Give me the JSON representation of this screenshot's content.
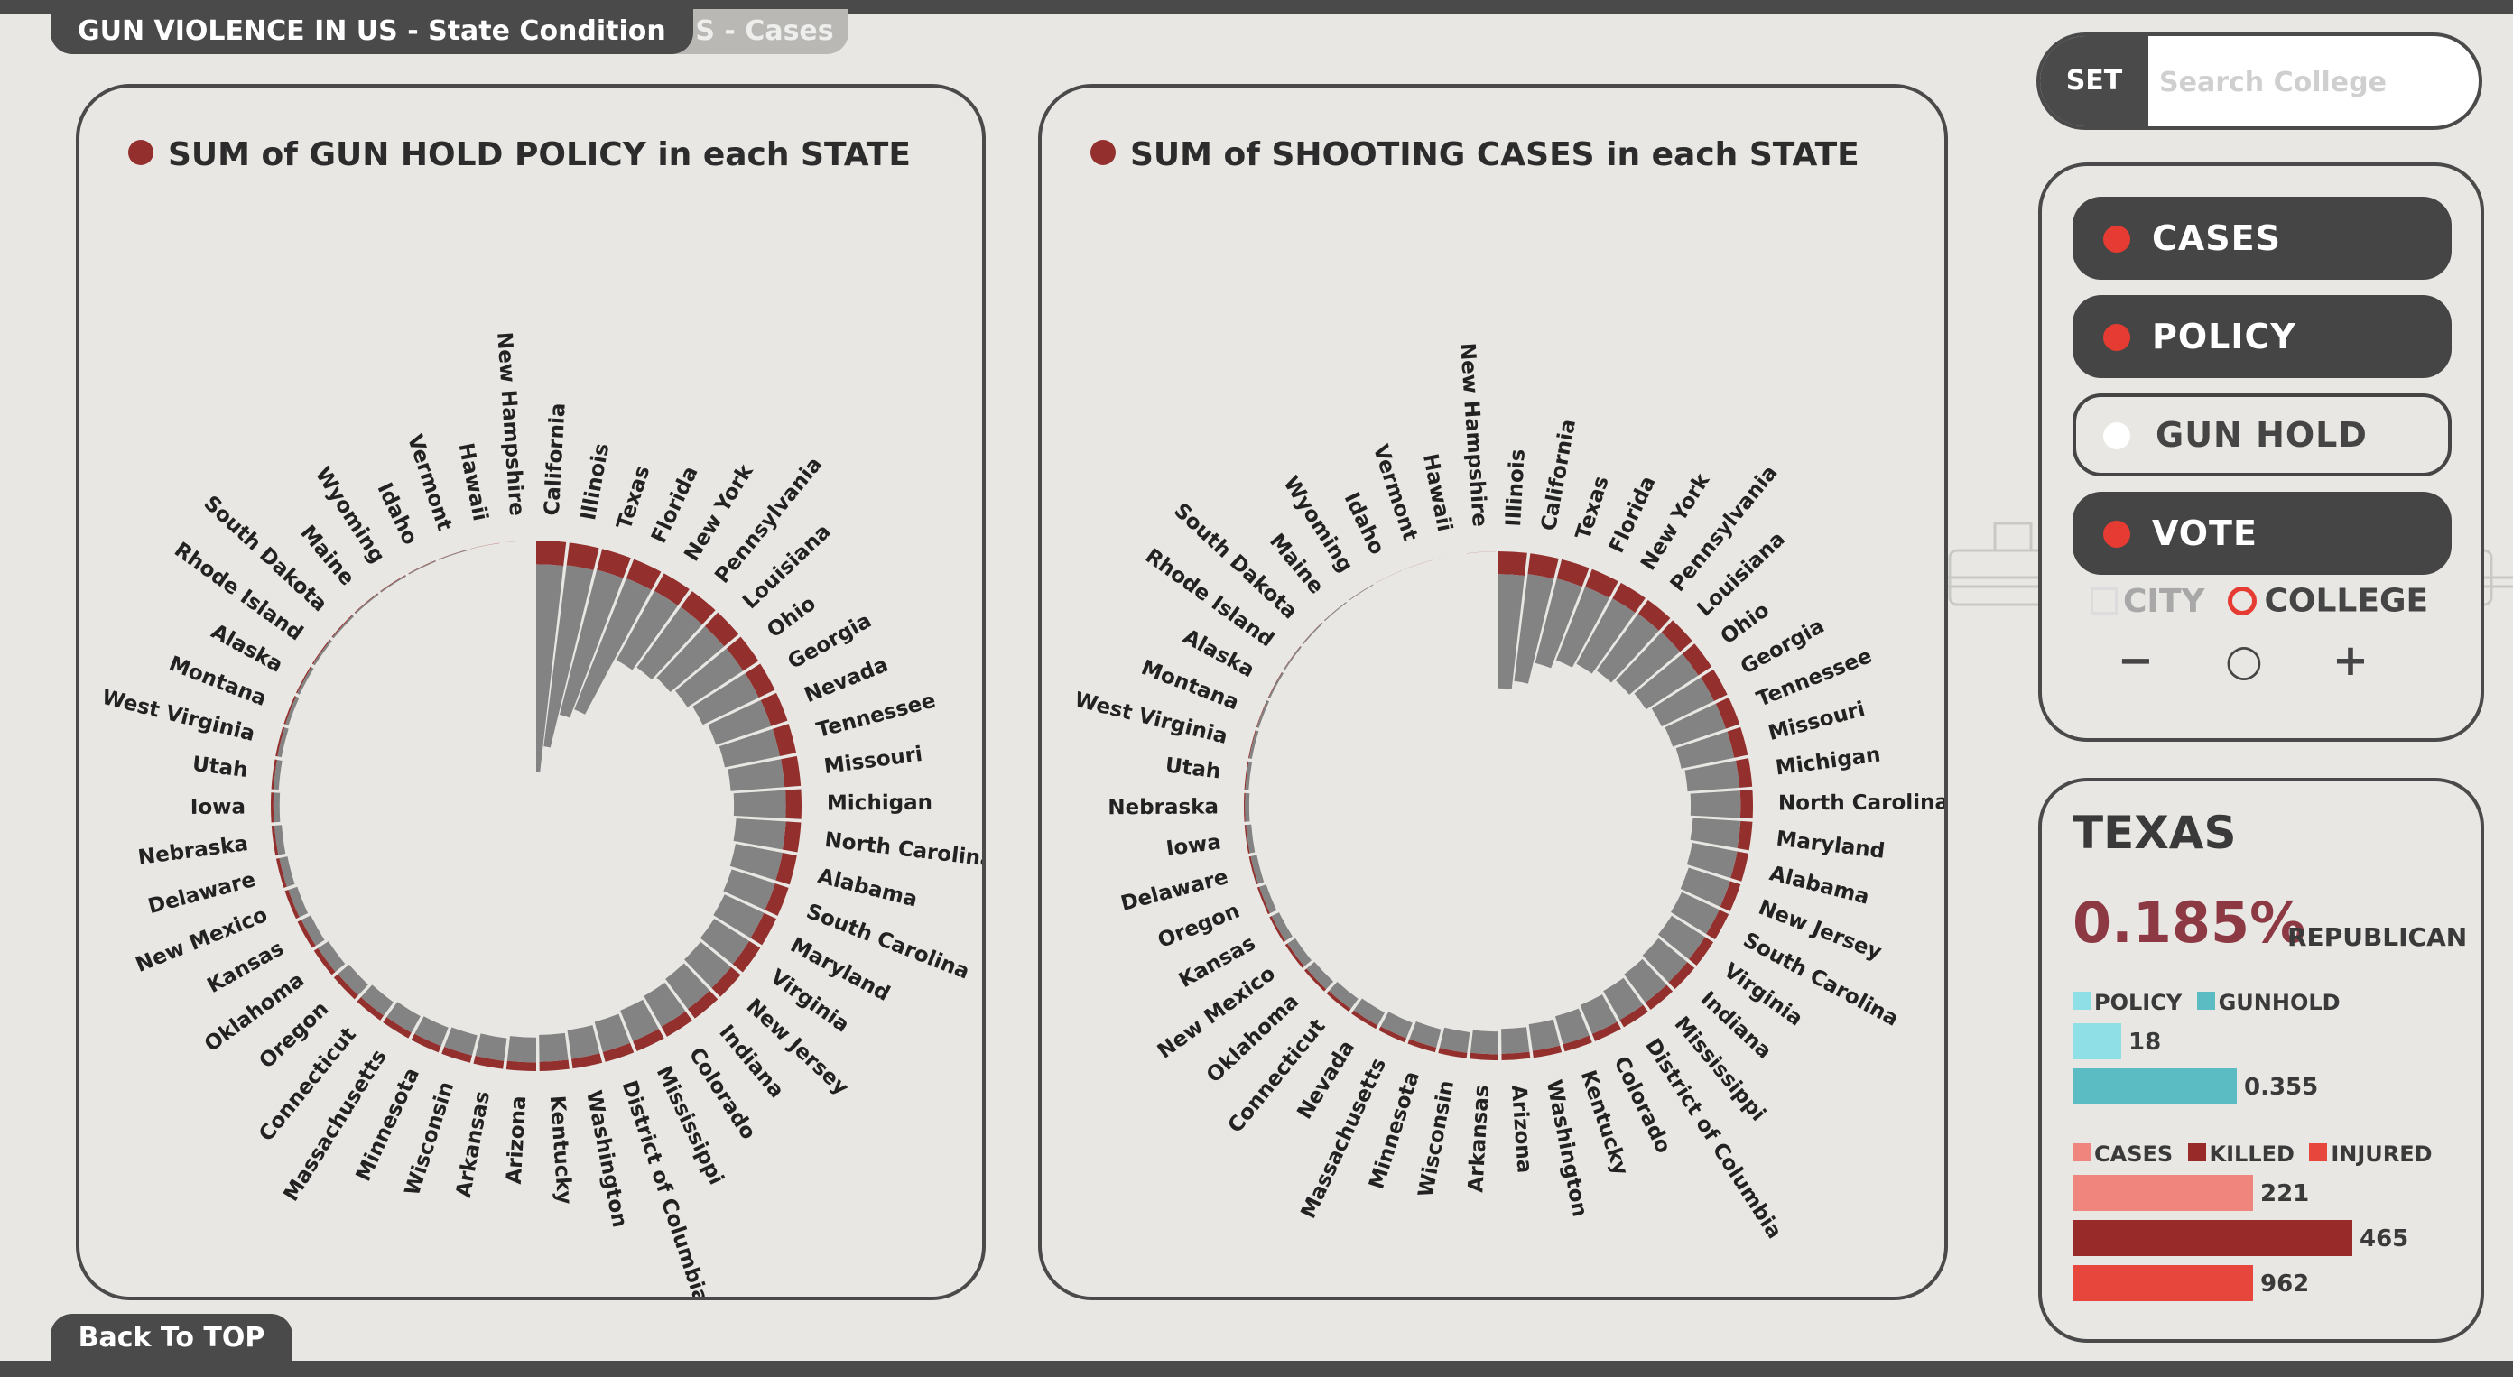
{
  "tabs": {
    "main": "GUN VIOLENCE IN US - State Condition",
    "secondary": "US - Cases"
  },
  "search": {
    "set_label": "SET",
    "placeholder": "Search College"
  },
  "filters": {
    "buttons": [
      {
        "label": "CASES",
        "active": true
      },
      {
        "label": "POLICY",
        "active": true
      },
      {
        "label": "GUN HOLD",
        "active": false
      },
      {
        "label": "VOTE",
        "active": true
      }
    ],
    "city_label": "CITY",
    "college_label": "COLLEGE",
    "zoom_out": "−",
    "zoom_reset": "○",
    "zoom_in": "+"
  },
  "info": {
    "state": "TEXAS",
    "percent": "0.185%",
    "party": "REPUBLICAN",
    "legend1": [
      "POLICY",
      "GUNHOLD"
    ],
    "policy_value": "18",
    "gunhold_value": "0.355",
    "legend2": [
      "CASES",
      "KILLED",
      "INJURED"
    ],
    "cases_value": "221",
    "killed_value": "465",
    "injured_value": "962"
  },
  "back_label": "Back To TOP",
  "colors": {
    "dark": "#4a4a4a",
    "red_bar": "#93302d",
    "gray_bar": "#838383",
    "accent_red": "#e63b32",
    "policy": "#8fe0e6",
    "gunhold": "#5bbcc4",
    "cases": "#ef857c",
    "killed": "#982b29",
    "injured": "#e7463d"
  },
  "chart_data": [
    {
      "type": "radial-bar",
      "title": "SUM of GUN HOLD POLICY in each STATE",
      "series_note": "relative bar lengths (0–1)",
      "categories": [
        "California",
        "Illinois",
        "Texas",
        "Florida",
        "New York",
        "Pennsylvania",
        "Louisiana",
        "Ohio",
        "Georgia",
        "Nevada",
        "Tennessee",
        "Missouri",
        "Michigan",
        "North Carolina",
        "Alabama",
        "South Carolina",
        "Maryland",
        "Virginia",
        "New Jersey",
        "Indiana",
        "Colorado",
        "Mississippi",
        "District of Columbia",
        "Washington",
        "Kentucky",
        "Arizona",
        "Arkansas",
        "Wisconsin",
        "Minnesota",
        "Massachusetts",
        "Connecticut",
        "Oregon",
        "Oklahoma",
        "Kansas",
        "New Mexico",
        "Delaware",
        "Nebraska",
        "Iowa",
        "Utah",
        "West Virginia",
        "Montana",
        "Alaska",
        "Rhode Island",
        "South Dakota",
        "Maine",
        "Wyoming",
        "Idaho",
        "Vermont",
        "Hawaii",
        "New Hampshire"
      ],
      "series": [
        {
          "values": [
            0.22,
            0.21,
            0.2,
            0.19,
            0.185,
            0.18,
            0.175,
            0.17,
            0.165,
            0.16,
            0.155,
            0.15,
            0.145,
            0.14,
            0.135,
            0.13,
            0.125,
            0.12,
            0.115,
            0.11,
            0.105,
            0.1,
            0.095,
            0.09,
            0.085,
            0.08,
            0.075,
            0.07,
            0.065,
            0.06,
            0.055,
            0.05,
            0.045,
            0.04,
            0.035,
            0.03,
            0.027,
            0.024,
            0.021,
            0.018,
            0.015,
            0.012,
            0.01,
            0.008,
            0.006,
            0.005,
            0.004,
            0.003,
            0.002,
            0.001
          ]
        },
        {
          "values": [
            1.0,
            0.88,
            0.72,
            0.68,
            0.38,
            0.36,
            0.34,
            0.32,
            0.3,
            0.28,
            0.27,
            0.26,
            0.25,
            0.24,
            0.23,
            0.22,
            0.21,
            0.2,
            0.19,
            0.18,
            0.17,
            0.16,
            0.15,
            0.14,
            0.13,
            0.12,
            0.11,
            0.1,
            0.095,
            0.09,
            0.08,
            0.07,
            0.06,
            0.05,
            0.045,
            0.04,
            0.035,
            0.03,
            0.025,
            0.02,
            0.016,
            0.013,
            0.01,
            0.008,
            0.006,
            0.005,
            0.004,
            0.003,
            0.002,
            0.001
          ]
        }
      ]
    },
    {
      "type": "radial-bar",
      "title": "SUM of SHOOTING CASES in each STATE",
      "series_note": "relative bar lengths (0–1)",
      "categories": [
        "Illinois",
        "California",
        "Texas",
        "Florida",
        "New York",
        "Pennsylvania",
        "Louisiana",
        "Ohio",
        "Georgia",
        "Tennessee",
        "Missouri",
        "Michigan",
        "North Carolina",
        "Maryland",
        "Alabama",
        "New Jersey",
        "South Carolina",
        "Virginia",
        "Indiana",
        "Mississippi",
        "District of Columbia",
        "Colorado",
        "Kentucky",
        "Washington",
        "Arizona",
        "Arkansas",
        "Wisconsin",
        "Minnesota",
        "Massachusetts",
        "Nevada",
        "Connecticut",
        "Oklahoma",
        "New Mexico",
        "Kansas",
        "Oregon",
        "Delaware",
        "Iowa",
        "Nebraska",
        "Utah",
        "West Virginia",
        "Montana",
        "Alaska",
        "Rhode Island",
        "South Dakota",
        "Maine",
        "Wyoming",
        "Idaho",
        "Vermont",
        "Hawaii",
        "New Hampshire"
      ],
      "series": [
        {
          "values": [
            0.23,
            0.21,
            0.2,
            0.19,
            0.18,
            0.17,
            0.165,
            0.16,
            0.15,
            0.145,
            0.14,
            0.13,
            0.125,
            0.12,
            0.115,
            0.11,
            0.105,
            0.1,
            0.095,
            0.09,
            0.085,
            0.08,
            0.075,
            0.07,
            0.065,
            0.06,
            0.055,
            0.05,
            0.045,
            0.04,
            0.035,
            0.03,
            0.027,
            0.024,
            0.021,
            0.018,
            0.015,
            0.012,
            0.01,
            0.008,
            0.006,
            0.005,
            0.004,
            0.003,
            0.002,
            0.0015,
            0.001,
            0.001,
            0.001,
            0.001
          ]
        },
        {
          "values": [
            0.55,
            0.52,
            0.42,
            0.38,
            0.36,
            0.34,
            0.32,
            0.3,
            0.28,
            0.27,
            0.26,
            0.25,
            0.24,
            0.23,
            0.22,
            0.21,
            0.2,
            0.19,
            0.18,
            0.17,
            0.16,
            0.15,
            0.14,
            0.13,
            0.12,
            0.11,
            0.1,
            0.09,
            0.08,
            0.07,
            0.06,
            0.05,
            0.045,
            0.04,
            0.035,
            0.03,
            0.025,
            0.02,
            0.016,
            0.013,
            0.01,
            0.008,
            0.006,
            0.005,
            0.004,
            0.003,
            0.002,
            0.001,
            0.001,
            0.001
          ]
        }
      ]
    }
  ]
}
